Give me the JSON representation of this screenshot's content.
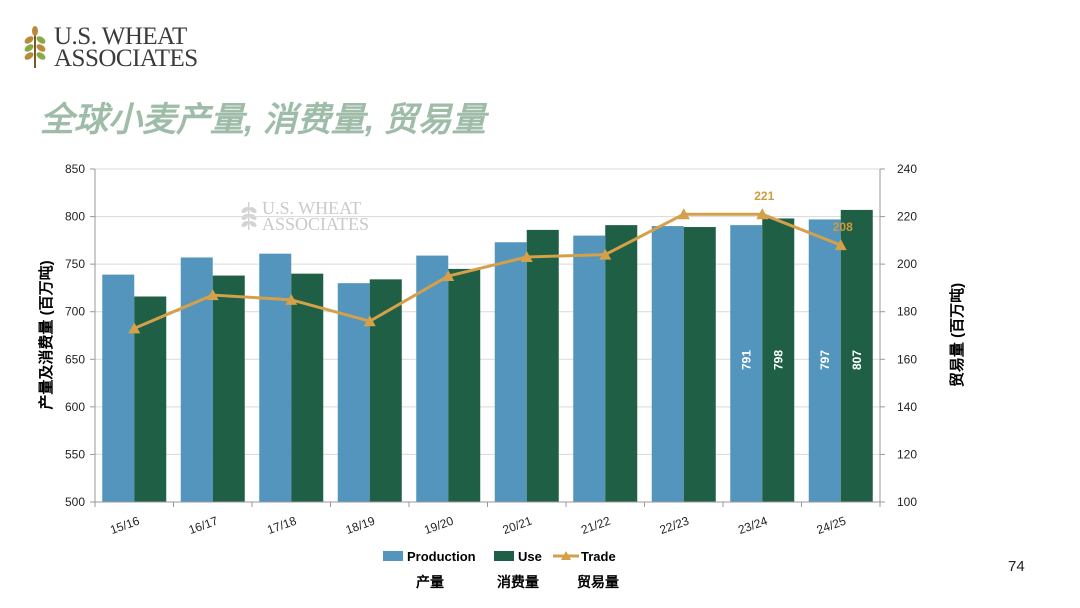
{
  "logo": {
    "line1": "U.S. WHEAT",
    "line2": "ASSOCIATES"
  },
  "slide": {
    "title": "全球小麦产量, 消费量, 贸易量",
    "page_number": "74"
  },
  "watermark": {
    "line1": "U.S. WHEAT",
    "line2": "ASSOCIATES"
  },
  "colors": {
    "production": "#5395bd",
    "use": "#1f5f45",
    "trade": "#d4a04a",
    "grid": "#d9d9d9"
  },
  "chart_data": {
    "type": "bar",
    "title": "全球小麦产量, 消费量, 贸易量",
    "categories": [
      "15/16",
      "16/17",
      "17/18",
      "18/19",
      "19/20",
      "20/21",
      "21/22",
      "22/23",
      "23/24",
      "24/25"
    ],
    "series": [
      {
        "name": "Production",
        "axis": "left",
        "type": "bar",
        "values": [
          739,
          757,
          761,
          730,
          759,
          773,
          780,
          790,
          791,
          797
        ]
      },
      {
        "name": "Use",
        "axis": "left",
        "type": "bar",
        "values": [
          716,
          738,
          740,
          734,
          745,
          786,
          791,
          789,
          798,
          807
        ]
      },
      {
        "name": "Trade",
        "axis": "right",
        "type": "line",
        "values": [
          173,
          187,
          185,
          176,
          195,
          203,
          204,
          221,
          221,
          208
        ]
      }
    ],
    "bar_labels": [
      {
        "series": "Production",
        "index": 8,
        "text": "791"
      },
      {
        "series": "Use",
        "index": 8,
        "text": "798"
      },
      {
        "series": "Production",
        "index": 9,
        "text": "797"
      },
      {
        "series": "Use",
        "index": 9,
        "text": "807"
      }
    ],
    "line_labels": [
      {
        "index": 8,
        "text": "221"
      },
      {
        "index": 9,
        "text": "208"
      }
    ],
    "ylabel": "产量及消费量 (百万吨)",
    "y2label": "贸易量 (百万吨)",
    "ylim": [
      500,
      850
    ],
    "y2lim": [
      100,
      240
    ],
    "yticks": [
      "500",
      "550",
      "600",
      "650",
      "700",
      "750",
      "800",
      "850"
    ],
    "y2ticks": [
      "100",
      "120",
      "140",
      "160",
      "180",
      "200",
      "220",
      "240"
    ],
    "grid": true,
    "legend": {
      "position": "bottom",
      "items": [
        "Production",
        "Use",
        "Trade"
      ],
      "captions": [
        "产量",
        "消费量",
        "贸易量"
      ]
    }
  }
}
